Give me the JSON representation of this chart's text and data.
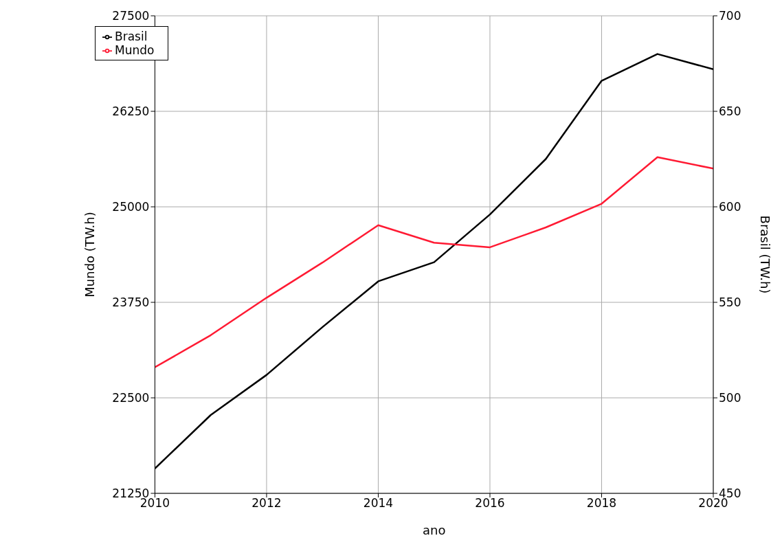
{
  "chart_data": {
    "type": "line",
    "xlabel": "ano",
    "ylabel": "Mundo (TW.h)",
    "y2label": "Brasil (TW.h)",
    "x": [
      2010,
      2011,
      2012,
      2013,
      2014,
      2015,
      2016,
      2017,
      2018,
      2019,
      2020
    ],
    "series": [
      {
        "name": "Brasil",
        "color": "#000000",
        "axis": "y2",
        "values": [
          463,
          491,
          512,
          537,
          561,
          571,
          596,
          625,
          666,
          680,
          672
        ]
      },
      {
        "name": "Mundo",
        "color": "#ff1a33",
        "values": [
          22900,
          23320,
          23810,
          24270,
          24760,
          24530,
          24470,
          24730,
          25040,
          25650,
          25500
        ]
      }
    ],
    "xlim": [
      2010,
      2020
    ],
    "xticks": [
      2010,
      2012,
      2014,
      2016,
      2018,
      2020
    ],
    "ylim": [
      21250,
      27500
    ],
    "yticks": [
      21250,
      22500,
      23750,
      25000,
      26250,
      27500
    ],
    "y2lim": [
      450,
      700
    ],
    "y2ticks": [
      450,
      500,
      550,
      600,
      650,
      700
    ],
    "grid": true,
    "legend": "top left",
    "marker": "none",
    "line_style": "solid"
  }
}
